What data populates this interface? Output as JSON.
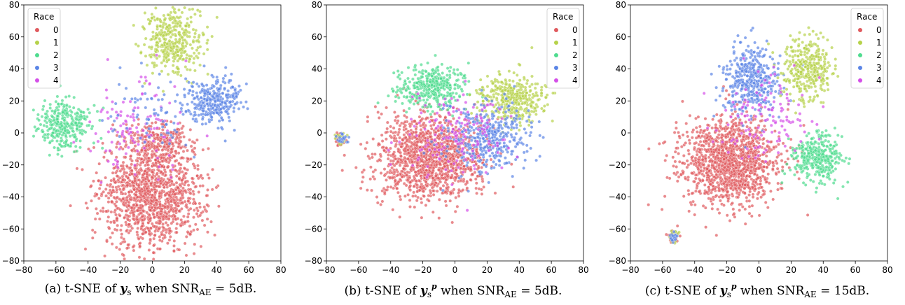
{
  "colors": {
    "0": "#e05a5e",
    "1": "#b6d24a",
    "2": "#4fdc8f",
    "3": "#5b85e6",
    "4": "#d44fe8"
  },
  "chart_data": [
    {
      "type": "scatter",
      "xlim": [
        -80,
        80
      ],
      "ylim": [
        -80,
        80
      ],
      "xticks": [
        -80,
        -60,
        -40,
        -20,
        0,
        20,
        40,
        60,
        80
      ],
      "yticks": [
        -80,
        -60,
        -40,
        -20,
        0,
        20,
        40,
        60,
        80
      ],
      "legend": {
        "title": "Race",
        "entries": [
          "0",
          "1",
          "2",
          "3",
          "4"
        ],
        "placement": "top-left"
      },
      "caption": {
        "prefix": "(a)  t-SNE of ",
        "var": "y",
        "sub": "s",
        "sup": "",
        "mid": " when ",
        "snr": "SNR",
        "snr_sub": "AE",
        "rest": " = 5dB."
      },
      "clusters": [
        {
          "cls": 0,
          "cx": 0,
          "cy": -38,
          "rx": 32,
          "ry": 34,
          "n": 1300
        },
        {
          "cls": 0,
          "cx": 5,
          "cy": -5,
          "rx": 22,
          "ry": 12,
          "n": 200
        },
        {
          "cls": 1,
          "cx": 12,
          "cy": 58,
          "rx": 18,
          "ry": 20,
          "n": 380
        },
        {
          "cls": 2,
          "cx": -55,
          "cy": 5,
          "rx": 16,
          "ry": 15,
          "n": 300
        },
        {
          "cls": 3,
          "cx": 38,
          "cy": 20,
          "rx": 17,
          "ry": 14,
          "n": 300
        },
        {
          "cls": 4,
          "cx": -10,
          "cy": 5,
          "rx": 30,
          "ry": 35,
          "n": 120
        },
        {
          "cls": 3,
          "cx": 5,
          "cy": 10,
          "rx": 30,
          "ry": 25,
          "n": 80
        }
      ]
    },
    {
      "type": "scatter",
      "xlim": [
        -80,
        80
      ],
      "ylim": [
        -80,
        80
      ],
      "xticks": [
        -80,
        -60,
        -40,
        -20,
        0,
        20,
        40,
        60,
        80
      ],
      "yticks": [
        -80,
        -60,
        -40,
        -20,
        0,
        20,
        40,
        60,
        80
      ],
      "legend": {
        "title": "Race",
        "entries": [
          "0",
          "1",
          "2",
          "3",
          "4"
        ],
        "placement": "top-right"
      },
      "caption": {
        "prefix": "(b)  t-SNE of ",
        "var": "y",
        "sub": "s",
        "sup": "p",
        "mid": " when ",
        "snr": "SNR",
        "snr_sub": "AE",
        "rest": " = 5dB."
      },
      "clusters": [
        {
          "cls": 0,
          "cx": -15,
          "cy": -15,
          "rx": 32,
          "ry": 27,
          "n": 1300
        },
        {
          "cls": 2,
          "cx": -15,
          "cy": 28,
          "rx": 22,
          "ry": 12,
          "n": 380
        },
        {
          "cls": 1,
          "cx": 35,
          "cy": 22,
          "rx": 20,
          "ry": 15,
          "n": 380
        },
        {
          "cls": 3,
          "cx": 20,
          "cy": -2,
          "rx": 25,
          "ry": 20,
          "n": 380
        },
        {
          "cls": 4,
          "cx": 0,
          "cy": 0,
          "rx": 35,
          "ry": 30,
          "n": 160
        },
        {
          "cls": 0,
          "cx": -71,
          "cy": -4,
          "rx": 3,
          "ry": 4,
          "n": 50
        },
        {
          "cls": 1,
          "cx": -71,
          "cy": -4,
          "rx": 3,
          "ry": 4,
          "n": 25
        },
        {
          "cls": 3,
          "cx": -71,
          "cy": -4,
          "rx": 3,
          "ry": 4,
          "n": 25
        }
      ]
    },
    {
      "type": "scatter",
      "xlim": [
        -80,
        80
      ],
      "ylim": [
        -80,
        80
      ],
      "xticks": [
        -80,
        -60,
        -40,
        -20,
        0,
        20,
        40,
        60,
        80
      ],
      "yticks": [
        -80,
        -60,
        -40,
        -20,
        0,
        20,
        40,
        60,
        80
      ],
      "legend": {
        "title": "Race",
        "entries": [
          "0",
          "1",
          "2",
          "3",
          "4"
        ],
        "placement": "top-right"
      },
      "caption": {
        "prefix": "(c)  t-SNE of ",
        "var": "y",
        "sub": "s",
        "sup": "p",
        "mid": " when ",
        "snr": "SNR",
        "snr_sub": "AE",
        "rest": " = 15dB."
      },
      "clusters": [
        {
          "cls": 0,
          "cx": -18,
          "cy": -18,
          "rx": 30,
          "ry": 28,
          "n": 1300
        },
        {
          "cls": 3,
          "cx": -5,
          "cy": 32,
          "rx": 18,
          "ry": 22,
          "n": 400
        },
        {
          "cls": 1,
          "cx": 30,
          "cy": 40,
          "rx": 15,
          "ry": 20,
          "n": 350
        },
        {
          "cls": 2,
          "cx": 36,
          "cy": -15,
          "rx": 15,
          "ry": 14,
          "n": 350
        },
        {
          "cls": 4,
          "cx": 5,
          "cy": 10,
          "rx": 30,
          "ry": 28,
          "n": 130
        },
        {
          "cls": 0,
          "cx": -53,
          "cy": -65,
          "rx": 3,
          "ry": 4,
          "n": 50
        },
        {
          "cls": 1,
          "cx": -53,
          "cy": -65,
          "rx": 3,
          "ry": 4,
          "n": 25
        },
        {
          "cls": 3,
          "cx": -53,
          "cy": -65,
          "rx": 3,
          "ry": 4,
          "n": 25
        }
      ]
    }
  ]
}
